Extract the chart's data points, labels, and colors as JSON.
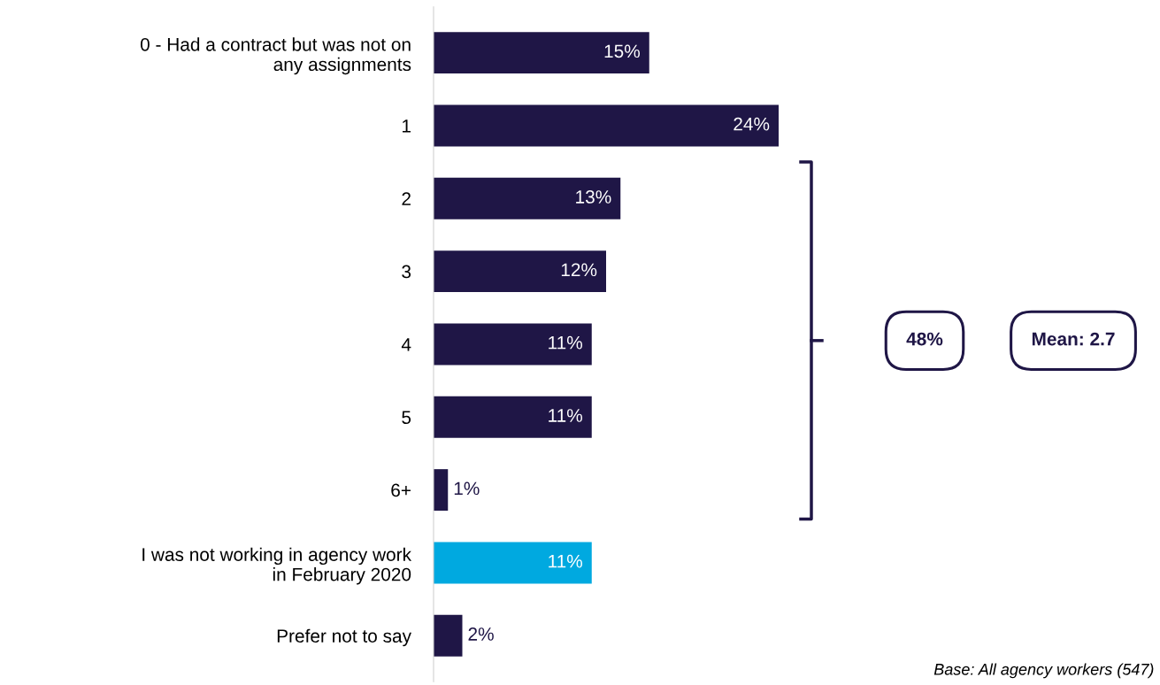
{
  "chart_data": {
    "type": "bar",
    "orientation": "horizontal",
    "categories": [
      "0 - Had a contract but was not on\nany assignments",
      "1",
      "2",
      "3",
      "4",
      "5",
      "6+",
      "I was not working in agency work\nin February 2020",
      "Prefer not to say"
    ],
    "values": [
      15,
      24,
      13,
      12,
      11,
      11,
      1,
      11,
      2
    ],
    "colors": [
      "#1f1646",
      "#1f1646",
      "#1f1646",
      "#1f1646",
      "#1f1646",
      "#1f1646",
      "#1f1646",
      "#00a9e0",
      "#1f1646"
    ],
    "value_labels": [
      "15%",
      "24%",
      "13%",
      "12%",
      "11%",
      "11%",
      "1%",
      "11%",
      "2%"
    ],
    "annotations": [
      "48%",
      "Mean: 2.7",
      "Base: All agency workers (547)"
    ],
    "grid": false,
    "legend": false,
    "tick_labels": "y"
  }
}
